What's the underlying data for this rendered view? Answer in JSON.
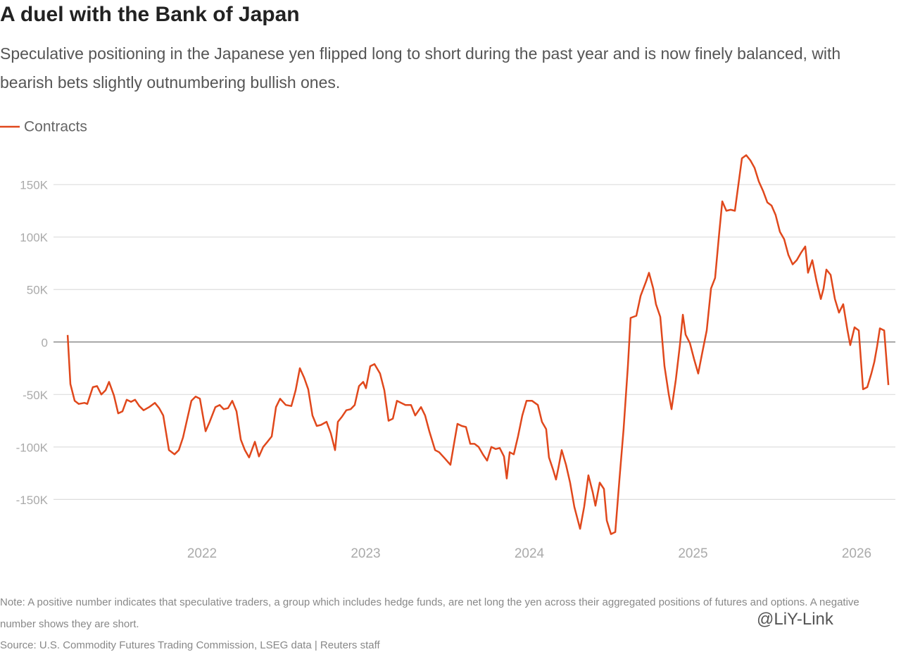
{
  "chart_data": {
    "type": "line",
    "title": "A duel with the Bank of Japan",
    "subtitle": "Speculative positioning in the Japanese yen flipped long to short during the past year and is now finely balanced, with bearish bets slightly outnumbering bullish ones.",
    "note": "Note: A positive number indicates that speculative traders, a group which includes hedge funds, are net long the yen across their aggregated positions of futures and options. A negative number shows they are short.",
    "source": "Source: U.S. Commodity Futures Trading Commission, LSEG data | Reuters staff",
    "watermark": "@LiY-Link",
    "x": [
      2021.179,
      2021.196,
      2021.222,
      2021.247,
      2021.282,
      2021.299,
      2021.333,
      2021.359,
      2021.385,
      2021.411,
      2021.432,
      2021.462,
      2021.488,
      2021.514,
      2021.54,
      2021.566,
      2021.591,
      2021.617,
      2021.643,
      2021.677,
      2021.712,
      2021.738,
      2021.763,
      2021.798,
      2021.832,
      2021.858,
      2021.884,
      2021.91,
      2021.935,
      2021.961,
      2021.987,
      2022.022,
      2022.047,
      2022.082,
      2022.108,
      2022.133,
      2022.159,
      2022.185,
      2022.211,
      2022.237,
      2022.262,
      2022.288,
      2022.323,
      2022.348,
      2022.374,
      2022.4,
      2022.426,
      2022.452,
      2022.477,
      2022.512,
      2022.546,
      2022.572,
      2022.598,
      2022.624,
      2022.649,
      2022.675,
      2022.701,
      2022.727,
      2022.761,
      2022.787,
      2022.813,
      2022.83,
      2022.856,
      2022.882,
      2022.908,
      2022.933,
      2022.959,
      2022.985,
      2023.002,
      2023.028,
      2023.054,
      2023.088,
      2023.114,
      2023.14,
      2023.166,
      2023.191,
      2023.217,
      2023.243,
      2023.277,
      2023.303,
      2023.338,
      2023.363,
      2023.389,
      2023.424,
      2023.449,
      2023.484,
      2023.518,
      2023.544,
      2023.561,
      2023.587,
      2023.613,
      2023.639,
      2023.665,
      2023.69,
      2023.716,
      2023.742,
      2023.768,
      2023.794,
      2023.819,
      2023.845,
      2023.862,
      2023.88,
      2023.905,
      2023.931,
      2023.957,
      2023.983,
      2024.017,
      2024.052,
      2024.077,
      2024.103,
      2024.12,
      2024.146,
      2024.163,
      2024.181,
      2024.198,
      2024.224,
      2024.249,
      2024.275,
      2024.31,
      2024.335,
      2024.361,
      2024.387,
      2024.404,
      2024.43,
      2024.456,
      2024.473,
      2024.499,
      2024.525,
      2024.551,
      2024.576,
      2024.602,
      2024.619,
      2024.654,
      2024.68,
      2024.714,
      2024.731,
      2024.757,
      2024.774,
      2024.8,
      2024.826,
      2024.852,
      2024.869,
      2024.895,
      2024.92,
      2024.938,
      2024.955,
      2024.981,
      2025.006,
      2025.032,
      2025.058,
      2025.084,
      2025.11,
      2025.135,
      2025.161,
      2025.179,
      2025.204,
      2025.23,
      2025.256,
      2025.273,
      2025.299,
      2025.325,
      2025.351,
      2025.376,
      2025.402,
      2025.428,
      2025.454,
      2025.48,
      2025.505,
      2025.531,
      2025.557,
      2025.583,
      2025.609,
      2025.634,
      2025.66,
      2025.686,
      2025.703,
      2025.729,
      2025.755,
      2025.781,
      2025.798,
      2025.815,
      2025.841,
      2025.867,
      2025.892,
      2025.918,
      2025.944,
      2025.961,
      2025.987,
      2026.013,
      2026.039,
      2026.065,
      2026.09,
      2026.108,
      2026.125,
      2026.142,
      2026.168,
      2026.194
    ],
    "series": [
      {
        "name": "Contracts",
        "color": "#e0481c",
        "values": [
          6700,
          -40000,
          -56000,
          -59000,
          -58000,
          -59000,
          -43000,
          -42000,
          -50000,
          -46000,
          -38000,
          -51000,
          -68000,
          -66000,
          -55000,
          -57000,
          -55000,
          -61000,
          -65000,
          -62000,
          -58000,
          -63000,
          -70000,
          -103000,
          -107000,
          -103000,
          -91000,
          -73000,
          -56000,
          -52000,
          -54000,
          -85000,
          -76000,
          -62000,
          -60000,
          -64000,
          -63000,
          -56000,
          -66000,
          -93000,
          -103000,
          -110000,
          -95000,
          -109000,
          -100000,
          -95000,
          -90000,
          -62000,
          -54000,
          -60000,
          -61000,
          -46000,
          -25000,
          -34000,
          -45000,
          -70000,
          -80000,
          -79000,
          -76000,
          -87000,
          -103000,
          -76000,
          -71000,
          -65000,
          -64000,
          -60000,
          -42000,
          -38000,
          -44000,
          -23000,
          -21000,
          -30000,
          -46000,
          -75000,
          -73000,
          -56000,
          -58000,
          -60000,
          -60000,
          -70000,
          -62000,
          -70000,
          -85000,
          -103000,
          -105000,
          -111000,
          -117000,
          -93000,
          -78000,
          -80000,
          -81000,
          -97000,
          -97000,
          -100000,
          -107000,
          -113000,
          -100000,
          -102000,
          -101000,
          -109000,
          -130000,
          -105000,
          -107000,
          -90000,
          -70000,
          -56000,
          -56000,
          -60000,
          -76000,
          -83000,
          -110000,
          -122000,
          -131000,
          -117000,
          -103000,
          -117000,
          -134000,
          -157000,
          -178000,
          -157000,
          -127000,
          -143000,
          -156000,
          -134000,
          -140000,
          -170000,
          -183000,
          -181000,
          -130000,
          -83000,
          -23000,
          23000,
          25000,
          44000,
          58000,
          66000,
          51000,
          36000,
          24000,
          -23000,
          -50000,
          -64000,
          -36000,
          -3000,
          26000,
          7000,
          -1000,
          -16000,
          -30000,
          -9000,
          11000,
          51000,
          61000,
          105000,
          134000,
          125000,
          126000,
          125000,
          145000,
          175000,
          178000,
          173000,
          166000,
          153000,
          144000,
          133000,
          130000,
          121000,
          105000,
          98000,
          83000,
          74000,
          78000,
          85000,
          91000,
          66000,
          78000,
          58000,
          41000,
          51000,
          69000,
          64000,
          41000,
          28000,
          36000,
          11000,
          -3000,
          14000,
          11000,
          -45000,
          -43000,
          -30000,
          -19000,
          -4000,
          13000,
          11000,
          -41000
        ]
      }
    ],
    "xlim": [
      2021.17,
      2026.2
    ],
    "xticks": [
      2022,
      2023,
      2024,
      2025,
      2026
    ],
    "ylim": [
      -190000,
      185000
    ],
    "yticks": [
      {
        "value": 150000,
        "label": "150K"
      },
      {
        "value": 100000,
        "label": "100K"
      },
      {
        "value": 50000,
        "label": "50K"
      },
      0,
      {
        "value": -50000,
        "label": "-50K"
      },
      {
        "value": -100000,
        "label": "-100K"
      },
      {
        "value": -150000,
        "label": "-150K"
      }
    ],
    "grid": true
  }
}
